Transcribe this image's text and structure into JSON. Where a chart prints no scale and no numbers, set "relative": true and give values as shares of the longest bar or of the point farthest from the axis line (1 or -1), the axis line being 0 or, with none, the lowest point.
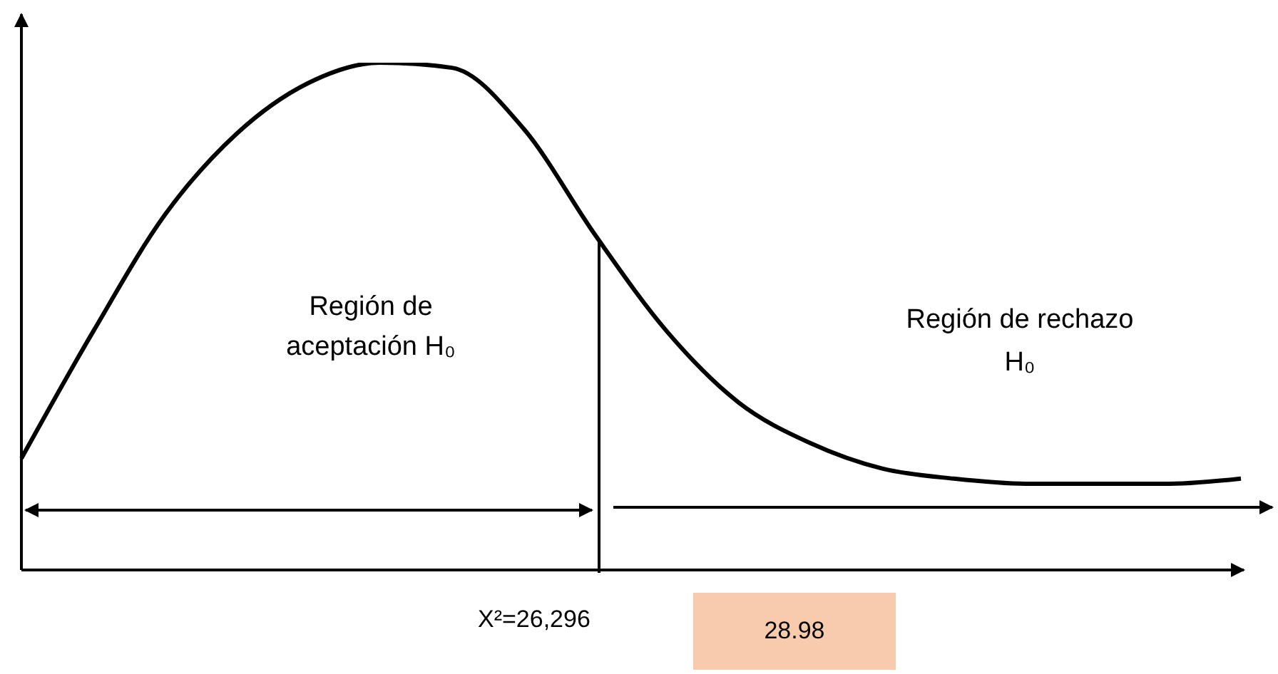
{
  "chart_data": {
    "type": "line",
    "relative": true,
    "categories": [
      null,
      null,
      null,
      null,
      null,
      null,
      null,
      null,
      null,
      null,
      null,
      null,
      null,
      null,
      null,
      null,
      null,
      null
    ],
    "series": [
      {
        "color": "#000000",
        "values": [
          0.22,
          0.47,
          0.7,
          0.86,
          0.96,
          1,
          0.99,
          0.87,
          0.66,
          0.47,
          0.33,
          0.25,
          0.2,
          0.18,
          0.17,
          0.17,
          0.17,
          0.18
        ]
      }
    ],
    "marker": "none",
    "line_style": "solid",
    "grid": false,
    "annotations": [
      "Región de aceptación H₀",
      "Región de rechazo H₀",
      "X²=26,296",
      "28.98"
    ]
  }
}
